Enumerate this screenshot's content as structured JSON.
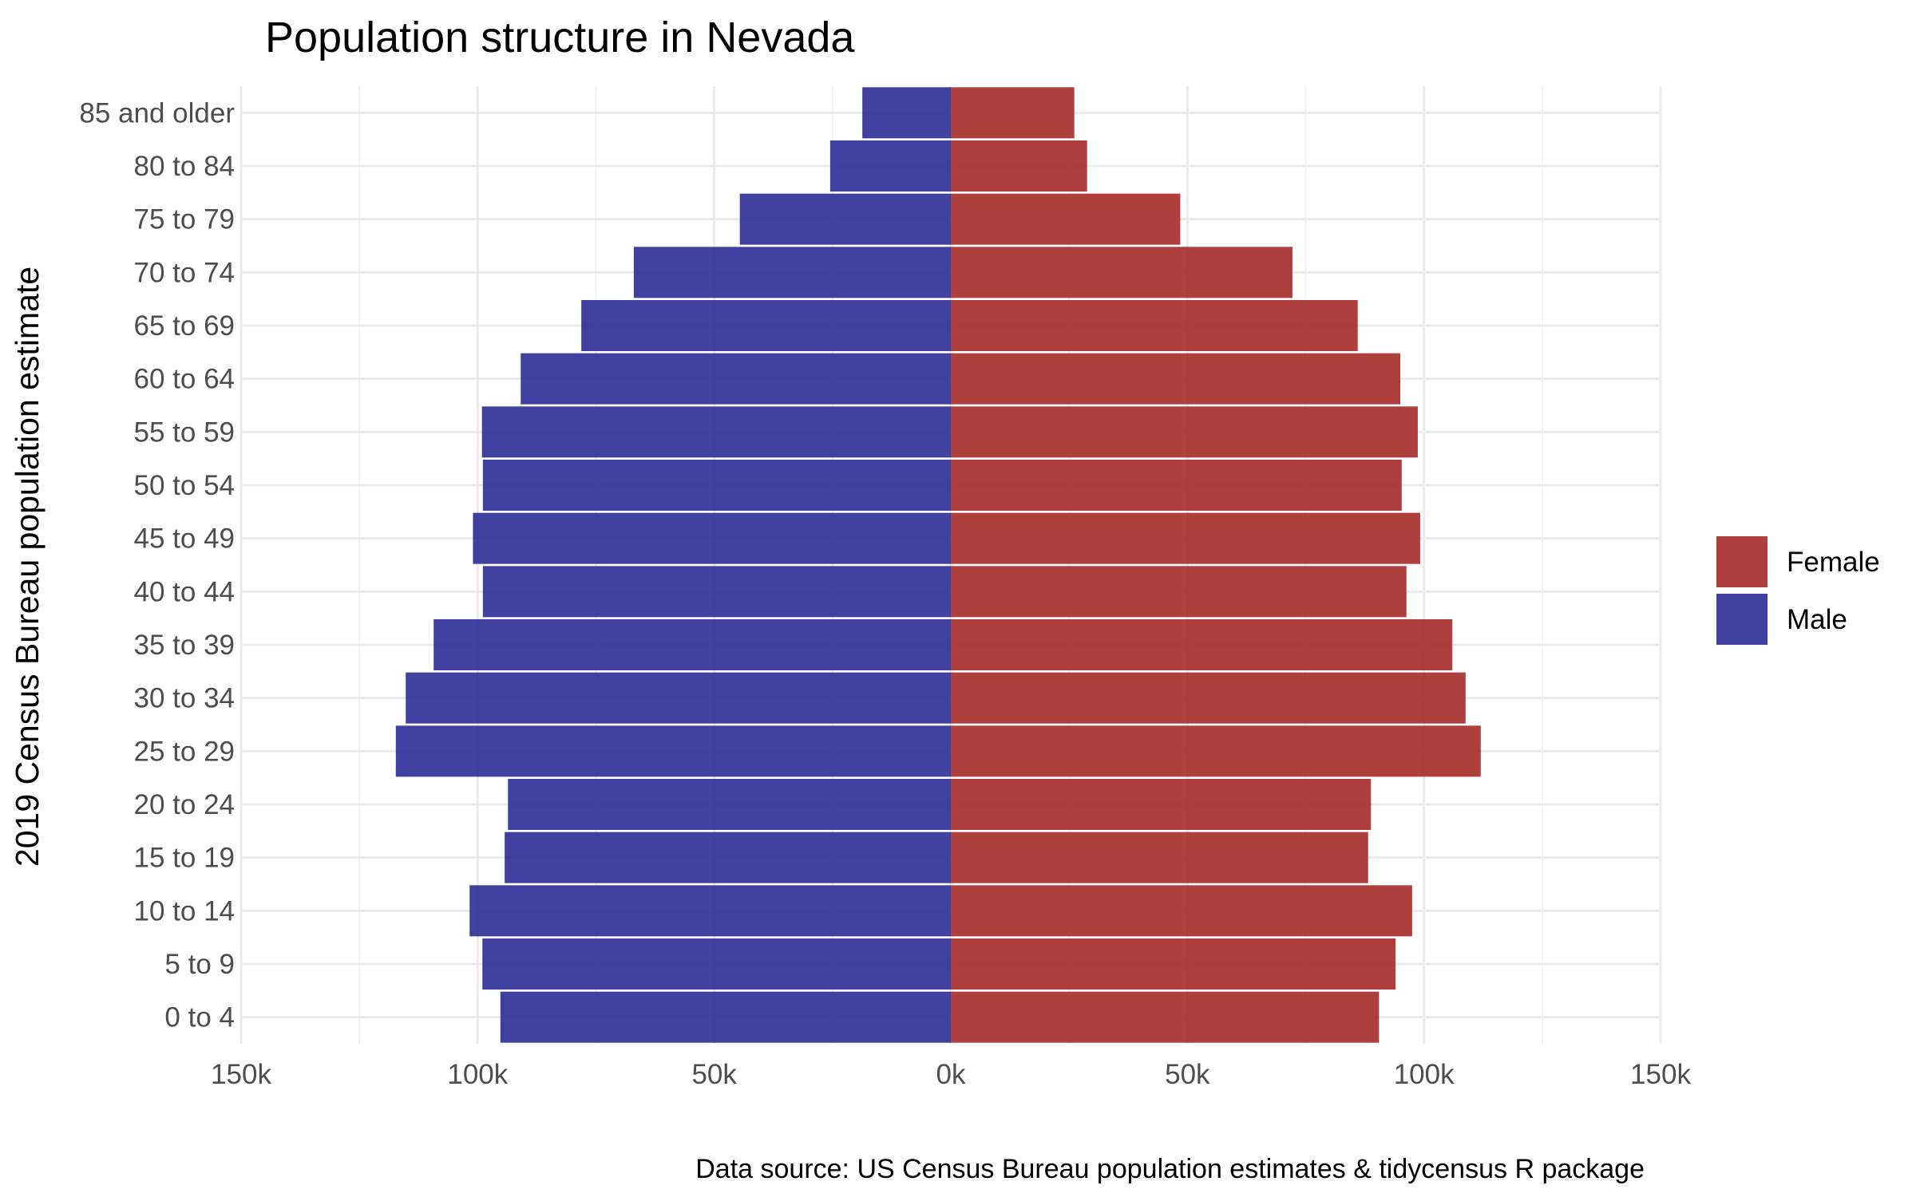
{
  "chart_data": {
    "type": "bar",
    "orientation": "horizontal",
    "layout": "population-pyramid",
    "title": "Population structure in Nevada",
    "ylabel": "2019 Census Bureau population estimate",
    "xlabel": "",
    "caption": "Data source: US Census Bureau population estimates & tidycensus R package",
    "xlim": [
      -150000,
      150000
    ],
    "x_ticks": [
      {
        "value": -150000,
        "label": "150k"
      },
      {
        "value": -100000,
        "label": "100k"
      },
      {
        "value": -50000,
        "label": "50k"
      },
      {
        "value": 0,
        "label": "0k"
      },
      {
        "value": 50000,
        "label": "50k"
      },
      {
        "value": 100000,
        "label": "100k"
      },
      {
        "value": 150000,
        "label": "150k"
      }
    ],
    "categories": [
      "0 to 4",
      "5 to 9",
      "10 to 14",
      "15 to 19",
      "20 to 24",
      "25 to 29",
      "30 to 34",
      "35 to 39",
      "40 to 44",
      "45 to 49",
      "50 to 54",
      "55 to 59",
      "60 to 64",
      "65 to 69",
      "70 to 74",
      "75 to 79",
      "80 to 84",
      "85 and older"
    ],
    "series": [
      {
        "name": "Female",
        "color": "#A52A2A",
        "side": "right",
        "values": [
          90500,
          94000,
          97500,
          88200,
          88800,
          112000,
          108800,
          106000,
          96300,
          99200,
          95300,
          98700,
          95000,
          86000,
          72200,
          48500,
          28800,
          26100
        ]
      },
      {
        "name": "Male",
        "color": "#2B2B97",
        "side": "left",
        "values": [
          95200,
          99000,
          101700,
          94300,
          93600,
          117300,
          115200,
          109300,
          98900,
          101000,
          98900,
          99100,
          90900,
          78100,
          67000,
          44600,
          25500,
          18700
        ]
      }
    ],
    "legend": {
      "position": "right",
      "items": [
        "Female",
        "Male"
      ]
    },
    "grid": true
  }
}
